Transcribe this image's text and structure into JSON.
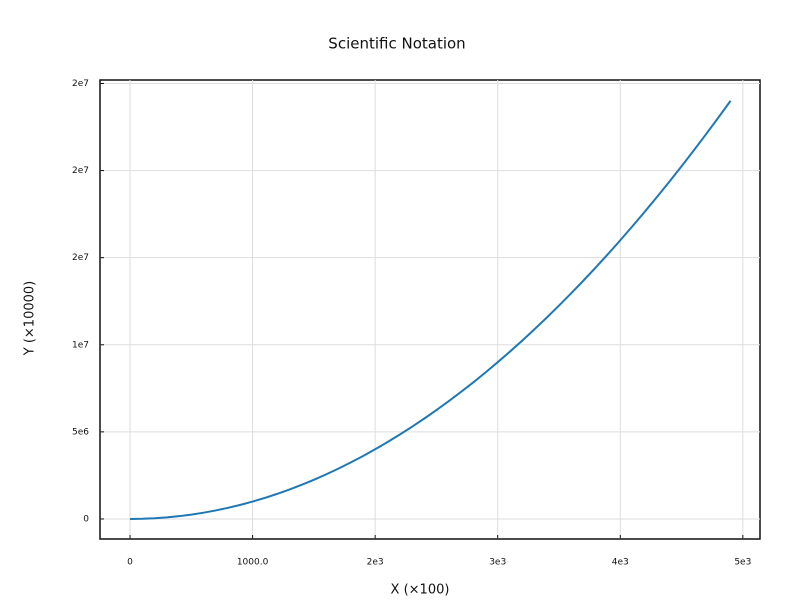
{
  "chart_data": {
    "type": "line",
    "title": "Scientific Notation",
    "x_label": "X (×100)",
    "y_label": "Y (×10000)",
    "x": [
      0,
      100,
      200,
      300,
      400,
      500,
      600,
      700,
      800,
      900,
      1000,
      1100,
      1200,
      1300,
      1400,
      1500,
      1600,
      1700,
      1800,
      1900,
      2000,
      2100,
      2200,
      2300,
      2400,
      2500,
      2600,
      2700,
      2800,
      2900,
      3000,
      3100,
      3200,
      3300,
      3400,
      3500,
      3600,
      3700,
      3800,
      3900,
      4000,
      4100,
      4200,
      4300,
      4400,
      4500,
      4600,
      4700,
      4800,
      4900
    ],
    "series": [
      {
        "color": "#1f77b4",
        "values": [
          0,
          10000,
          40000,
          90000,
          160000,
          250000,
          360000,
          490000,
          640000,
          810000,
          1000000,
          1210000,
          1440000,
          1690000,
          1960000,
          2250000,
          2560000,
          2890000,
          3240000,
          3610000,
          4000000,
          4410000,
          4840000,
          5290000,
          5760000,
          6250000,
          6760000,
          7290000,
          7840000,
          8410000,
          9000000,
          9610000,
          10240000,
          10890000,
          11560000,
          12250000,
          12960000,
          13690000,
          14440000,
          15210000,
          16000000,
          16810000,
          17640000,
          18490000,
          19360000,
          20250000,
          21160000,
          22090000,
          23040000,
          24010000
        ]
      }
    ],
    "xlim": [
      -245,
      5140
    ],
    "ylim": [
      -1150000,
      25200000
    ],
    "xticks": [
      0,
      {
        "value": 1000,
        "label": "1000.0"
      },
      {
        "value": 2000,
        "label": "2e3"
      },
      {
        "value": 3000,
        "label": "3e3"
      },
      {
        "value": 4000,
        "label": "4e3"
      },
      {
        "value": 5000,
        "label": "5e3"
      }
    ],
    "yticks": [
      0,
      {
        "value": 5000000,
        "label": "5e6"
      },
      {
        "value": 10000000,
        "label": "1e7"
      },
      {
        "value": 15000000,
        "label": "2e7"
      },
      {
        "value": 20000000,
        "label": "2e7"
      },
      {
        "value": 25000000,
        "label": "2e7"
      }
    ],
    "grid": true
  }
}
